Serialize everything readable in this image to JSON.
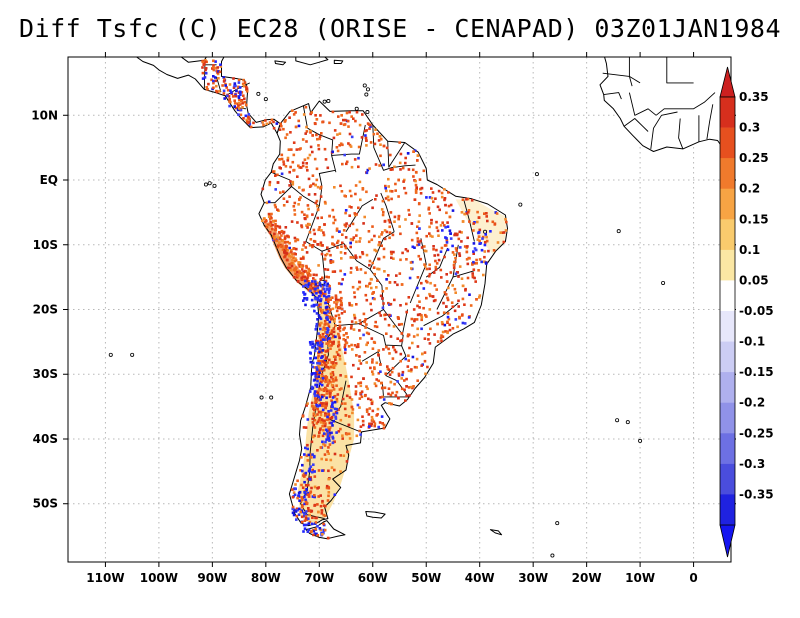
{
  "title": "Diff Tsfc (C) EC28 (ORISE - CENAPAD) 03Z01JAN1984",
  "map": {
    "lon_range": [
      -117,
      7
    ],
    "lat_range": [
      -59,
      19
    ],
    "lon_ticks": [
      {
        "value": -110,
        "label": "110W"
      },
      {
        "value": -100,
        "label": "100W"
      },
      {
        "value": -90,
        "label": "90W"
      },
      {
        "value": -80,
        "label": "80W"
      },
      {
        "value": -70,
        "label": "70W"
      },
      {
        "value": -60,
        "label": "60W"
      },
      {
        "value": -50,
        "label": "50W"
      },
      {
        "value": -40,
        "label": "40W"
      },
      {
        "value": -30,
        "label": "30W"
      },
      {
        "value": -20,
        "label": "20W"
      },
      {
        "value": -10,
        "label": "10W"
      },
      {
        "value": 0,
        "label": "0"
      }
    ],
    "lat_ticks": [
      {
        "value": 10,
        "label": "10N"
      },
      {
        "value": 0,
        "label": "EQ"
      },
      {
        "value": -10,
        "label": "10S"
      },
      {
        "value": -20,
        "label": "20S"
      },
      {
        "value": -30,
        "label": "30S"
      },
      {
        "value": -40,
        "label": "40S"
      },
      {
        "value": -50,
        "label": "50S"
      }
    ],
    "grid": true,
    "land_color": "#ffffff",
    "coast_color": "#000000"
  },
  "colorbar": {
    "levels": [
      {
        "label": "0.35",
        "color": "#d62f1d"
      },
      {
        "label": "0.3",
        "color": "#e6501f"
      },
      {
        "label": "0.25",
        "color": "#f07a2c"
      },
      {
        "label": "0.2",
        "color": "#f7a444"
      },
      {
        "label": "0.15",
        "color": "#f9cb6d"
      },
      {
        "label": "0.1",
        "color": "#fbe7a4"
      },
      {
        "label": "0.05",
        "color": "#ffffff"
      },
      {
        "label": "-0.05",
        "color": "#e7e7fb"
      },
      {
        "label": "-0.1",
        "color": "#cccdf4"
      },
      {
        "label": "-0.15",
        "color": "#afb0ee"
      },
      {
        "label": "-0.2",
        "color": "#9092e8"
      },
      {
        "label": "-0.25",
        "color": "#6d70e3"
      },
      {
        "label": "-0.3",
        "color": "#4a4ddd"
      },
      {
        "label": "-0.35",
        "color": "#1f22e0"
      }
    ],
    "top_color": "#cc2020",
    "bottom_color": "#1515f0"
  }
}
